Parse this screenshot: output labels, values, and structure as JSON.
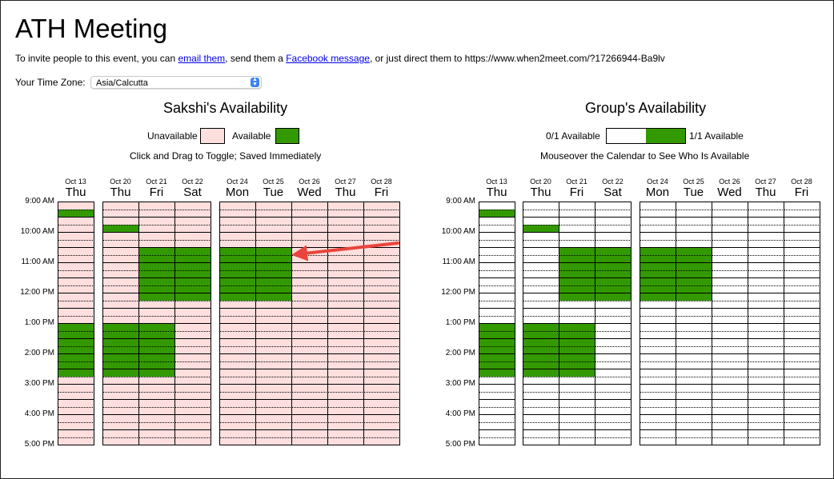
{
  "event": {
    "title": "ATH Meeting",
    "invite_prefix": "To invite people to this event, you can ",
    "email_link": "email them",
    "invite_middle": ", send them a ",
    "facebook_link": "Facebook message",
    "invite_suffix": ", or just direct them to https://www.when2meet.com/?17266944-Ba9lv"
  },
  "timezone": {
    "label": "Your Time Zone:",
    "value": "Asia/Calcutta"
  },
  "personal": {
    "heading": "Sakshi's Availability",
    "unavailable_label": "Unavailable",
    "available_label": "Available",
    "hint": "Click and Drag to Toggle; Saved Immediately"
  },
  "group": {
    "heading": "Group's Availability",
    "min_label": "0/1 Available",
    "max_label": "1/1 Available",
    "hint": "Mouseover the Calendar to See Who Is Available"
  },
  "colors": {
    "available": "#339900",
    "unavailable": "#ffdede",
    "group_empty": "#ffffff",
    "arrow": "#e8453c"
  },
  "hours": [
    "9:00 AM",
    "10:00 AM",
    "11:00 AM",
    "12:00 PM",
    "1:00 PM",
    "2:00 PM",
    "3:00 PM",
    "4:00 PM",
    "5:00 PM"
  ],
  "days": [
    {
      "date": "Oct 13",
      "dow": "Thu",
      "available_slots": [
        [
          1,
          2
        ],
        [
          16,
          23
        ]
      ]
    },
    {
      "date": "Oct 20",
      "dow": "Thu",
      "available_slots": [
        [
          3,
          4
        ],
        [
          16,
          23
        ]
      ]
    },
    {
      "date": "Oct 21",
      "dow": "Fri",
      "available_slots": [
        [
          6,
          13
        ],
        [
          16,
          23
        ]
      ]
    },
    {
      "date": "Oct 22",
      "dow": "Sat",
      "available_slots": [
        [
          6,
          13
        ]
      ]
    },
    {
      "date": "Oct 24",
      "dow": "Mon",
      "available_slots": [
        [
          6,
          13
        ]
      ]
    },
    {
      "date": "Oct 25",
      "dow": "Tue",
      "available_slots": [
        [
          6,
          13
        ]
      ]
    },
    {
      "date": "Oct 26",
      "dow": "Wed",
      "available_slots": []
    },
    {
      "date": "Oct 27",
      "dow": "Thu",
      "available_slots": []
    },
    {
      "date": "Oct 28",
      "dow": "Fri",
      "available_slots": []
    }
  ]
}
